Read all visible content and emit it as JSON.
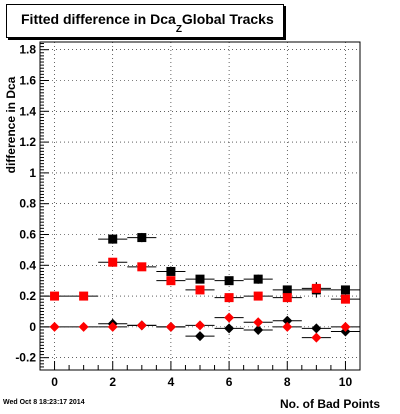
{
  "chart_data": {
    "type": "scatter",
    "title_main": "Fitted difference in Dca",
    "title_sub": "Z",
    "title_tail": "Global Tracks",
    "xlabel": "No. of Bad Points",
    "ylabel": "difference in Dca",
    "xlim": [
      -0.5,
      10.5
    ],
    "ylim": [
      -0.28,
      1.85
    ],
    "xticks": [
      0,
      2,
      4,
      6,
      8,
      10
    ],
    "yticks": [
      -0.2,
      0,
      0.2,
      0.4,
      0.6,
      0.8,
      1,
      1.2,
      1.4,
      1.6,
      1.8
    ],
    "ytick_labels": [
      "-0.2",
      "0",
      "0.2",
      "0.4",
      "0.6",
      "0.8",
      "1",
      "1.2",
      "1.4",
      "1.6",
      "1.8"
    ],
    "grid": true,
    "series": [
      {
        "color": "#000000",
        "marker": "square",
        "x": [
          2,
          3,
          4,
          5,
          6,
          7,
          8,
          9,
          10
        ],
        "y": [
          0.57,
          0.58,
          0.36,
          0.31,
          0.3,
          0.31,
          0.24,
          0.24,
          0.24
        ],
        "xerr": [
          0.5,
          0.5,
          0.5,
          0.5,
          0.5,
          0.5,
          0.5,
          0.5,
          0.5
        ],
        "yerr": [
          0.03,
          0.03,
          0.025,
          0.02,
          0.02,
          0.03,
          0.02,
          0.05,
          0.02
        ]
      },
      {
        "color": "#ff0000",
        "marker": "square",
        "x": [
          0,
          1,
          2,
          3,
          4,
          5,
          6,
          7,
          8,
          9,
          10
        ],
        "y": [
          0.2,
          0.2,
          0.42,
          0.39,
          0.3,
          0.24,
          0.19,
          0.2,
          0.19,
          0.25,
          0.18
        ],
        "xerr": [
          0.5,
          0.5,
          0.5,
          0.5,
          0.5,
          0.5,
          0.5,
          0.5,
          0.5,
          0.5,
          0.5
        ],
        "yerr": [
          0.01,
          0.01,
          0.01,
          0.01,
          0.01,
          0.01,
          0.01,
          0.01,
          0.01,
          0.04,
          0.01
        ]
      },
      {
        "color": "#000000",
        "marker": "diamond",
        "x": [
          2,
          3,
          4,
          5,
          6,
          7,
          8,
          9,
          10
        ],
        "y": [
          0.02,
          0.01,
          0.0,
          -0.06,
          -0.01,
          -0.02,
          0.04,
          -0.01,
          -0.03
        ],
        "xerr": [
          0.5,
          0.5,
          0.5,
          0.5,
          0.5,
          0.5,
          0.5,
          0.5,
          0.5
        ],
        "yerr": [
          0.01,
          0.01,
          0.01,
          0.01,
          0.01,
          0.01,
          0.01,
          0.01,
          0.01
        ]
      },
      {
        "color": "#ff0000",
        "marker": "diamond",
        "x": [
          0,
          1,
          2,
          3,
          4,
          5,
          6,
          7,
          8,
          9,
          10
        ],
        "y": [
          0.0,
          0.0,
          0.0,
          0.01,
          0.0,
          0.01,
          0.06,
          0.03,
          0.0,
          -0.07,
          0.0
        ],
        "xerr": [
          0.5,
          0.5,
          0.5,
          0.5,
          0.5,
          0.5,
          0.5,
          0.5,
          0.5,
          0.5,
          0.5
        ],
        "yerr": [
          0.01,
          0.01,
          0.01,
          0.01,
          0.01,
          0.01,
          0.01,
          0.01,
          0.01,
          0.01,
          0.01
        ]
      }
    ]
  },
  "footer": "Wed Oct  8 18:23:17 2014"
}
